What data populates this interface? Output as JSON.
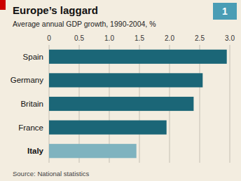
{
  "chart_data": {
    "type": "bar",
    "orientation": "horizontal",
    "title": "Europe’s laggard",
    "subtitle": "Average annual GDP growth, 1990-2004, %",
    "source": "Source: National statistics",
    "chart_number": "1",
    "categories": [
      "Spain",
      "Germany",
      "Britain",
      "France",
      "Italy"
    ],
    "values": [
      2.95,
      2.55,
      2.4,
      1.95,
      1.45
    ],
    "colors": [
      "#1b6677",
      "#1b6677",
      "#1b6677",
      "#1b6677",
      "#7fb3bf"
    ],
    "xlim": [
      0,
      3.0
    ],
    "xticks": [
      0,
      0.5,
      {
        "value": 1.0,
        "label": "1.0"
      },
      1.5,
      {
        "value": 2.0,
        "label": "2.0"
      },
      2.5,
      {
        "value": 3.0,
        "label": "3.0"
      }
    ],
    "grid": true
  }
}
